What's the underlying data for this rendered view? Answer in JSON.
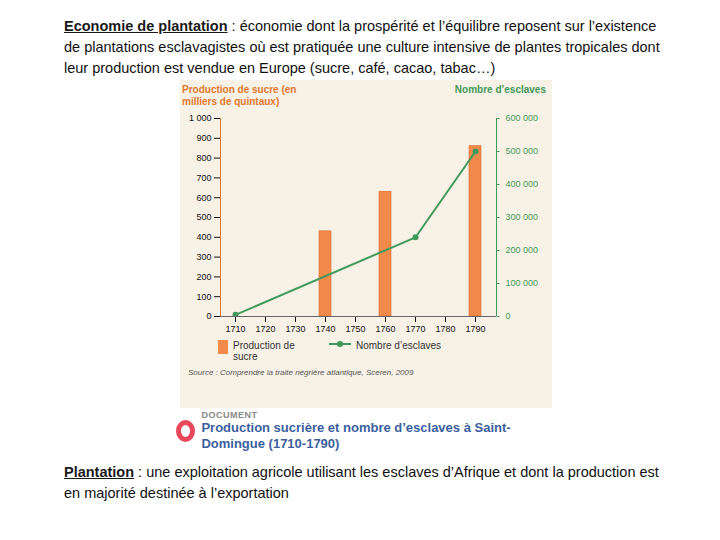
{
  "header": {
    "term": "Economie de plantation",
    "definition": " : économie dont la prospérité et l’équilibre reposent sur l’existence de plantations esclavagistes où est pratiquée une culture intensive de plantes tropicales dont leur production est vendue en Europe (sucre, café, cacao, tabac…)"
  },
  "chart_data": {
    "type": "bar",
    "title": "Production sucrière et nombre d’esclaves à Saint-Domingue (1710-1790)",
    "annotations": [
      "DOCUMENT",
      "Source : Comprendre la traite négrière atlantique, Sceren, 2009"
    ],
    "ylabel": "Production de sucre (en milliers de quintaux)",
    "y2label": "Nombre d’esclaves",
    "xlim": [
      1705,
      1797
    ],
    "xticks": [
      1710,
      1720,
      1730,
      1740,
      1750,
      1760,
      1770,
      1780,
      1790
    ],
    "ylim": [
      0,
      1000
    ],
    "yticks": [
      0,
      100,
      200,
      300,
      400,
      500,
      600,
      700,
      800,
      900,
      {
        "value": 1000,
        "label": "1 000"
      }
    ],
    "y2lim": [
      0,
      600000
    ],
    "y2ticks": [
      0,
      {
        "value": 100000,
        "label": "100 000"
      },
      {
        "value": 200000,
        "label": "200 000"
      },
      {
        "value": 300000,
        "label": "300 000"
      },
      {
        "value": 400000,
        "label": "400 000"
      },
      {
        "value": 500000,
        "label": "500 000"
      },
      {
        "value": 600000,
        "label": "600 000"
      }
    ],
    "grid": false,
    "series": [
      {
        "name": "Production de sucre",
        "type": "bar",
        "color": "#f28a4c",
        "x": [
          1740,
          1760,
          1790
        ],
        "values": [
          430,
          630,
          860
        ]
      },
      {
        "name": "Nombre d’esclaves",
        "type": "line",
        "marker": "circle",
        "color": "#3f9a5b",
        "axis": "y2",
        "x": [
          1710,
          1770,
          1790
        ],
        "values": [
          5000,
          240000,
          500000
        ]
      }
    ]
  },
  "footer": {
    "term": "Plantation",
    "definition": " : une exploitation agricole utilisant les esclaves d’Afrique et dont la production est en majorité destinée à l’exportation"
  }
}
